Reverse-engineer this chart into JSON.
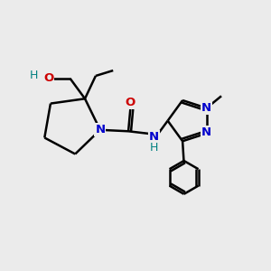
{
  "background_color": "#ebebeb",
  "atom_colors": {
    "C": "#000000",
    "N": "#0000cc",
    "O": "#cc0000",
    "H": "#008080"
  },
  "bond_color": "#000000",
  "bond_width": 1.8
}
